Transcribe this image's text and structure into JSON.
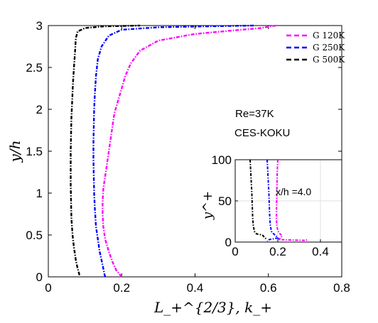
{
  "chart_data": [
    {
      "type": "line",
      "panel": "main",
      "xlabel": "L_+^{2/3}, k_+",
      "ylabel": "y/h",
      "xlim": [
        0,
        0.8
      ],
      "ylim": [
        0,
        3
      ],
      "xticks": [
        0,
        0.2,
        0.4,
        0.6,
        0.8
      ],
      "xtick_labels": [
        "0",
        "0.2",
        "0.4",
        "0.6",
        "0.8"
      ],
      "yticks": [
        0,
        0.5,
        1,
        1.5,
        2,
        2.5,
        3
      ],
      "ytick_labels": [
        "0",
        "0.5",
        "1",
        "1.5",
        "2",
        "2.5",
        "3"
      ],
      "grid": false,
      "legend_position": "top-right",
      "annotations": [
        "Re=37K",
        "CES-KOKU"
      ],
      "series": [
        {
          "name": "G 120K",
          "color": "#ff00ff",
          "points": [
            [
              0.2,
              0.0
            ],
            [
              0.185,
              0.08
            ],
            [
              0.175,
              0.18
            ],
            [
              0.165,
              0.3
            ],
            [
              0.155,
              0.45
            ],
            [
              0.15,
              0.6
            ],
            [
              0.148,
              0.75
            ],
            [
              0.148,
              0.9
            ],
            [
              0.15,
              1.05
            ],
            [
              0.155,
              1.2
            ],
            [
              0.16,
              1.35
            ],
            [
              0.165,
              1.5
            ],
            [
              0.17,
              1.65
            ],
            [
              0.175,
              1.8
            ],
            [
              0.18,
              1.95
            ],
            [
              0.19,
              2.1
            ],
            [
              0.2,
              2.25
            ],
            [
              0.21,
              2.4
            ],
            [
              0.225,
              2.55
            ],
            [
              0.25,
              2.7
            ],
            [
              0.3,
              2.82
            ],
            [
              0.4,
              2.9
            ],
            [
              0.5,
              2.94
            ],
            [
              0.58,
              2.97
            ],
            [
              0.62,
              3.0
            ]
          ]
        },
        {
          "name": "G 250K",
          "color": "#0000ff",
          "points": [
            [
              0.155,
              0.0
            ],
            [
              0.152,
              0.05
            ],
            [
              0.15,
              0.1
            ],
            [
              0.145,
              0.2
            ],
            [
              0.14,
              0.3
            ],
            [
              0.135,
              0.45
            ],
            [
              0.13,
              0.6
            ],
            [
              0.127,
              0.8
            ],
            [
              0.125,
              1.0
            ],
            [
              0.124,
              1.2
            ],
            [
              0.123,
              1.4
            ],
            [
              0.123,
              1.6
            ],
            [
              0.124,
              1.8
            ],
            [
              0.125,
              2.0
            ],
            [
              0.127,
              2.2
            ],
            [
              0.13,
              2.4
            ],
            [
              0.135,
              2.6
            ],
            [
              0.145,
              2.75
            ],
            [
              0.165,
              2.88
            ],
            [
              0.2,
              2.95
            ],
            [
              0.3,
              2.98
            ],
            [
              0.42,
              2.99
            ],
            [
              0.56,
              3.0
            ]
          ]
        },
        {
          "name": "G 500K",
          "color": "#000000",
          "points": [
            [
              0.085,
              0.02
            ],
            [
              0.08,
              0.1
            ],
            [
              0.075,
              0.2
            ],
            [
              0.07,
              0.35
            ],
            [
              0.066,
              0.5
            ],
            [
              0.063,
              0.7
            ],
            [
              0.062,
              0.9
            ],
            [
              0.061,
              1.1
            ],
            [
              0.061,
              1.3
            ],
            [
              0.061,
              1.5
            ],
            [
              0.062,
              1.7
            ],
            [
              0.063,
              1.9
            ],
            [
              0.065,
              2.1
            ],
            [
              0.067,
              2.3
            ],
            [
              0.07,
              2.5
            ],
            [
              0.073,
              2.7
            ],
            [
              0.075,
              2.85
            ],
            [
              0.08,
              2.93
            ],
            [
              0.1,
              2.97
            ],
            [
              0.15,
              2.99
            ],
            [
              0.25,
              3.0
            ]
          ]
        }
      ]
    },
    {
      "type": "line",
      "panel": "inset",
      "xlabel": "",
      "ylabel": "y^+",
      "xlim": [
        0,
        0.5
      ],
      "ylim": [
        0,
        100
      ],
      "xticks": [
        0,
        0.2,
        0.4
      ],
      "xtick_labels": [
        "0",
        "0.2",
        "0.4"
      ],
      "yticks": [
        0,
        50,
        100
      ],
      "ytick_labels": [
        "0",
        "50",
        "100"
      ],
      "grid": true,
      "annotations": [
        "x/h =4.0"
      ],
      "series": [
        {
          "color": "#ff00ff",
          "points": [
            [
              0.2,
              100
            ],
            [
              0.198,
              90
            ],
            [
              0.196,
              75
            ],
            [
              0.195,
              60
            ],
            [
              0.194,
              45
            ],
            [
              0.193,
              30
            ],
            [
              0.195,
              20
            ],
            [
              0.2,
              14
            ],
            [
              0.21,
              10
            ],
            [
              0.22,
              8
            ],
            [
              0.215,
              5
            ],
            [
              0.2,
              3
            ],
            [
              0.33,
              2
            ],
            [
              0.34,
              3
            ]
          ]
        },
        {
          "color": "#0000ff",
          "points": [
            [
              0.15,
              100
            ],
            [
              0.152,
              90
            ],
            [
              0.155,
              75
            ],
            [
              0.158,
              60
            ],
            [
              0.16,
              45
            ],
            [
              0.162,
              30
            ],
            [
              0.165,
              20
            ],
            [
              0.17,
              13
            ],
            [
              0.18,
              10
            ],
            [
              0.19,
              8
            ],
            [
              0.2,
              5
            ],
            [
              0.16,
              3
            ],
            [
              0.15,
              1
            ]
          ]
        },
        {
          "color": "#000000",
          "points": [
            [
              0.07,
              100
            ],
            [
              0.072,
              90
            ],
            [
              0.075,
              75
            ],
            [
              0.078,
              60
            ],
            [
              0.08,
              45
            ],
            [
              0.082,
              30
            ],
            [
              0.085,
              20
            ],
            [
              0.09,
              13
            ],
            [
              0.1,
              10
            ],
            [
              0.12,
              9
            ],
            [
              0.13,
              8
            ],
            [
              0.14,
              5
            ],
            [
              0.15,
              3
            ]
          ]
        }
      ]
    }
  ]
}
